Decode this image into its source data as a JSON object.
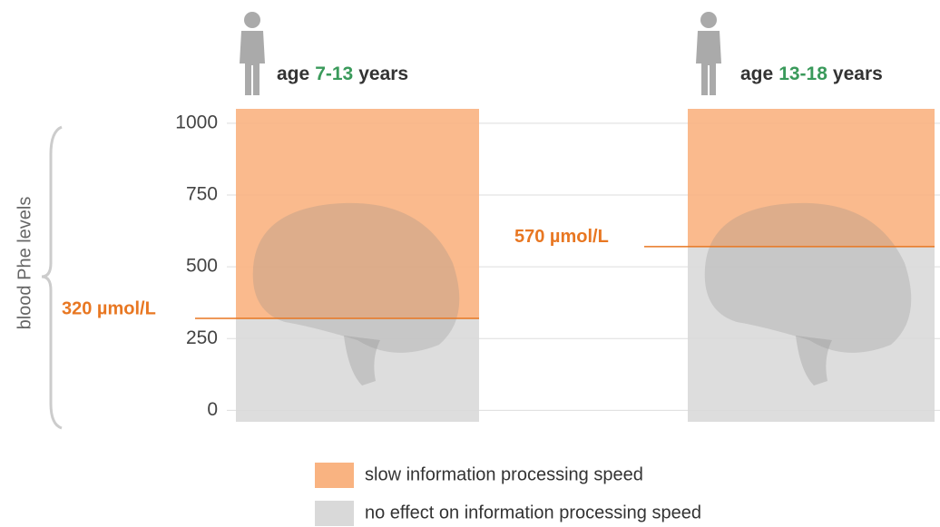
{
  "chart_data": {
    "type": "threshold-bar",
    "y_label": "blood Phe levels",
    "categories": [
      {
        "prefix": "age",
        "range": "7-13",
        "suffix": "years"
      },
      {
        "prefix": "age",
        "range": "13-18",
        "suffix": "years"
      }
    ],
    "values": [
      320,
      570
    ],
    "value_labels": [
      "320 µmol/L",
      "570 µmol/L"
    ],
    "series": [
      {
        "name": "slow information processing speed",
        "color": "#f9b381"
      },
      {
        "name": "no effect on information processing speed",
        "color": "#d9d9d9"
      }
    ],
    "ylim": [
      -40,
      1050
    ],
    "yticks": [
      0,
      250,
      500,
      750,
      1000
    ],
    "grid": true
  }
}
